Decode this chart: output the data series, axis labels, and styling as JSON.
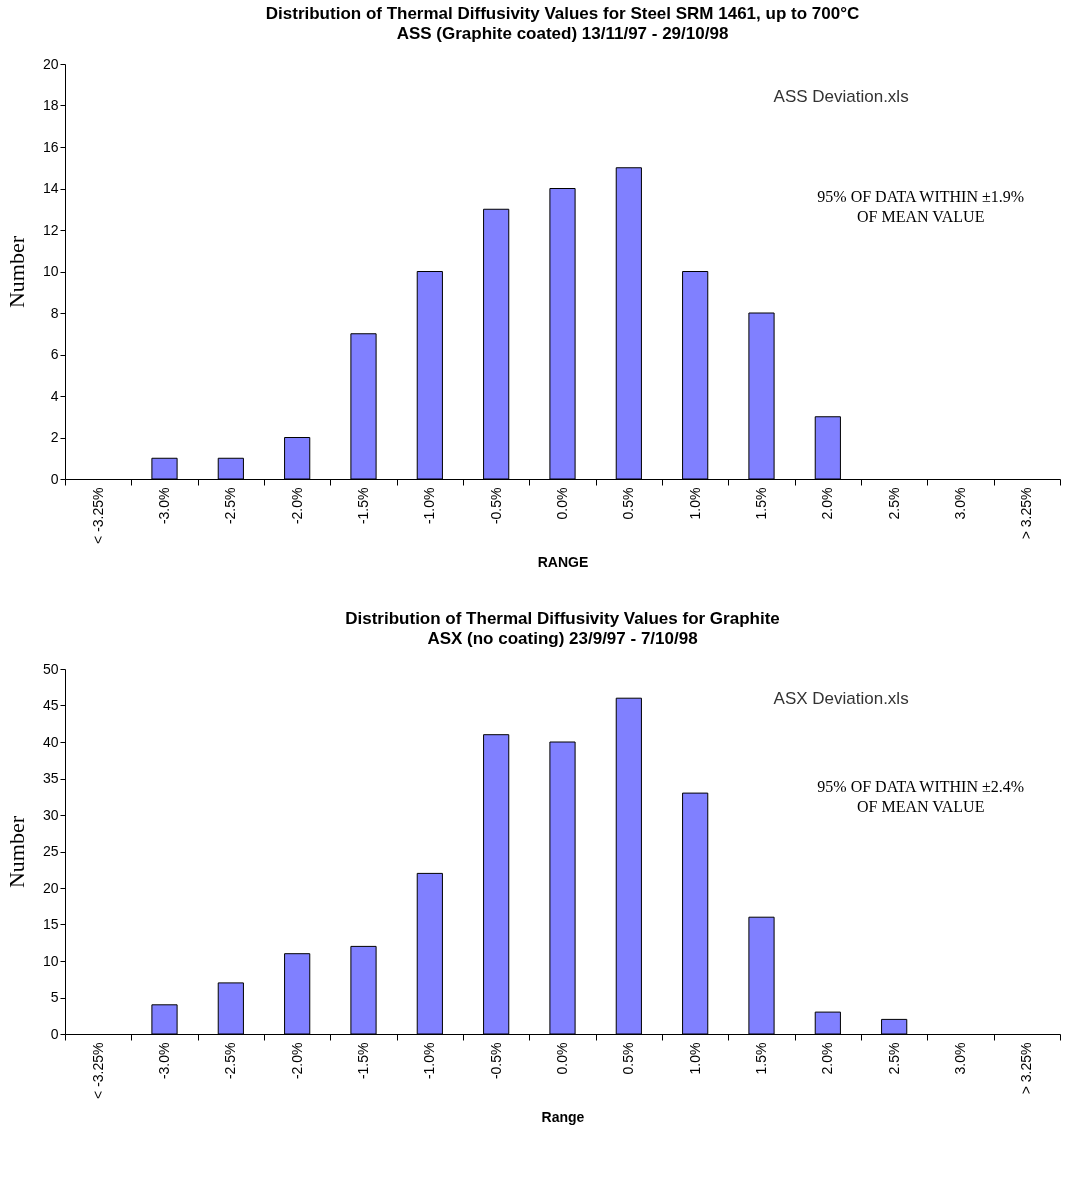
{
  "chart_data": [
    {
      "type": "bar",
      "title": "Distribution of Thermal Diffusivity Values for Steel SRM 1461, up to 700°C",
      "subtitle": "ASS (Graphite coated) 13/11/97 - 29/10/98",
      "xlabel": "RANGE",
      "ylabel": "Number",
      "categories": [
        "< -3.25%",
        "-3.0%",
        "-2.5%",
        "-2.0%",
        "-1.5%",
        "-1.0%",
        "-0.5%",
        "0.0%",
        "0.5%",
        "1.0%",
        "1.5%",
        "2.0%",
        "2.5%",
        "3.0%",
        "> 3.25%"
      ],
      "values": [
        0,
        1,
        1,
        2,
        7,
        10,
        13,
        14,
        15,
        10,
        8,
        3,
        0,
        0,
        0
      ],
      "color": "#8080ff",
      "ylim": [
        0,
        20
      ],
      "yticks": [
        0,
        2,
        4,
        6,
        8,
        10,
        12,
        14,
        16,
        18,
        20
      ],
      "annotations": [
        "ASS Deviation.xls",
        "95% OF DATA WITHIN ±1.9%\nOF MEAN VALUE"
      ]
    },
    {
      "type": "bar",
      "title": "Distribution of Thermal Diffusivity Values for Graphite",
      "subtitle": "ASX (no coating) 23/9/97 - 7/10/98",
      "xlabel": "Range",
      "ylabel": "Number",
      "categories": [
        "< -3.25%",
        "-3.0%",
        "-2.5%",
        "-2.0%",
        "-1.5%",
        "-1.0%",
        "-0.5%",
        "0.0%",
        "0.5%",
        "1.0%",
        "1.5%",
        "2.0%",
        "2.5%",
        "3.0%",
        "> 3.25%"
      ],
      "values": [
        0,
        4,
        7,
        11,
        12,
        22,
        41,
        40,
        46,
        33,
        16,
        3,
        2,
        0,
        0
      ],
      "color": "#8080ff",
      "ylim": [
        0,
        50
      ],
      "yticks": [
        0,
        5,
        10,
        15,
        20,
        25,
        30,
        35,
        40,
        45,
        50
      ],
      "annotations": [
        "ASX Deviation.xls",
        "95% OF DATA WITHIN ±2.4%\nOF MEAN VALUE"
      ]
    }
  ]
}
